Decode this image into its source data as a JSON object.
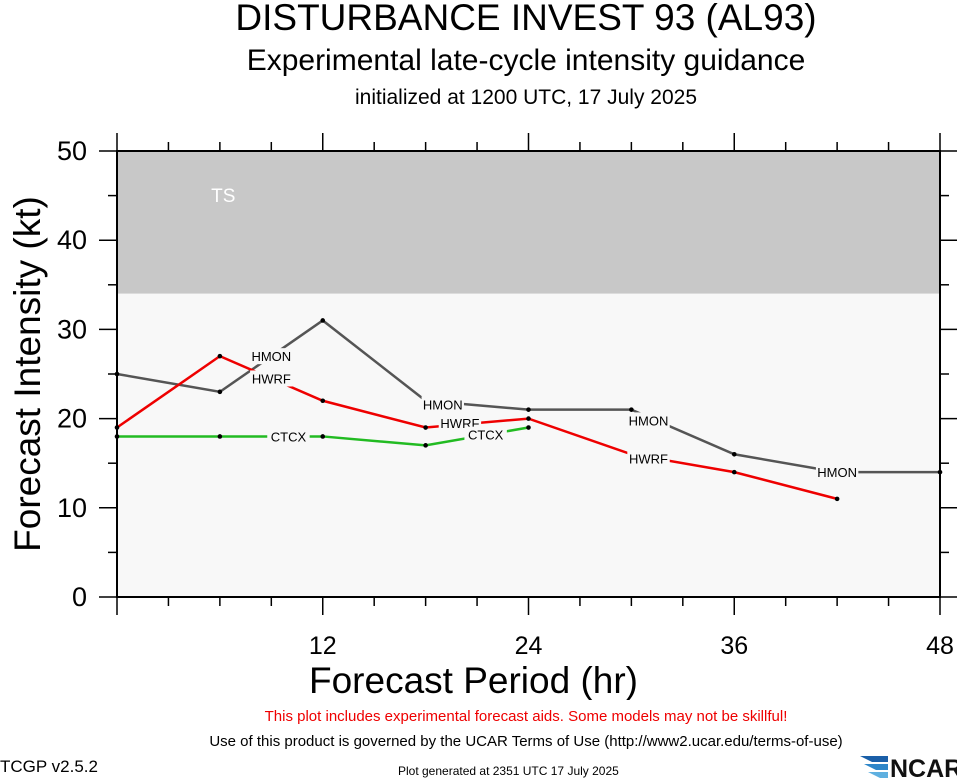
{
  "header": {
    "title": "DISTURBANCE INVEST 93 (AL93)",
    "subtitle": "Experimental late-cycle intensity guidance",
    "init": "initialized at 1200 UTC, 17 July 2025"
  },
  "footer": {
    "warning": "This plot includes experimental forecast aids. Some models may not be skillful!",
    "terms": "Use of this product is governed by the UCAR Terms of Use (http://www2.ucar.edu/terms-of-use)",
    "version": "TCGP v2.5.2",
    "generated": "Plot generated at 2351 UTC   17 July 2025",
    "logo_text": "NCAR"
  },
  "chart_data": {
    "type": "line",
    "title": "DISTURBANCE INVEST 93 (AL93)",
    "xlabel": "Forecast Period (hr)",
    "ylabel": "Forecast Intensity (kt)",
    "xlim": [
      0,
      48
    ],
    "ylim": [
      0,
      50
    ],
    "xticks": [
      12,
      24,
      36,
      48
    ],
    "yticks": [
      0,
      10,
      20,
      30,
      40,
      50
    ],
    "grid": false,
    "bands": [
      {
        "label": "TS",
        "from": 34,
        "to": 50,
        "color": "#c8c8c8"
      },
      {
        "label": "",
        "from": 0,
        "to": 34,
        "color": "#f8f8f8"
      }
    ],
    "series": [
      {
        "name": "HMON",
        "color": "#555555",
        "x": [
          0,
          6,
          12,
          18,
          24,
          30,
          36,
          42,
          48
        ],
        "y": [
          25,
          23,
          31,
          22,
          21,
          21,
          16,
          14,
          14
        ],
        "labels": [
          [
            9,
            27.0
          ],
          [
            19,
            21.6
          ],
          [
            31,
            19.8
          ],
          [
            42,
            14
          ]
        ]
      },
      {
        "name": "HWRF",
        "color": "#ee0000",
        "x": [
          0,
          6,
          12,
          18,
          24,
          30,
          36,
          42
        ],
        "y": [
          19,
          27,
          22,
          19,
          20,
          16,
          14,
          11
        ],
        "labels": [
          [
            9,
            24.5
          ],
          [
            20,
            19.5
          ],
          [
            31,
            15.5
          ]
        ]
      },
      {
        "name": "CTCX",
        "color": "#22bb22",
        "x": [
          0,
          6,
          12,
          18,
          24
        ],
        "y": [
          18,
          18,
          18,
          17,
          19
        ],
        "labels": [
          [
            10,
            18
          ],
          [
            21.5,
            18.2
          ]
        ]
      }
    ]
  }
}
